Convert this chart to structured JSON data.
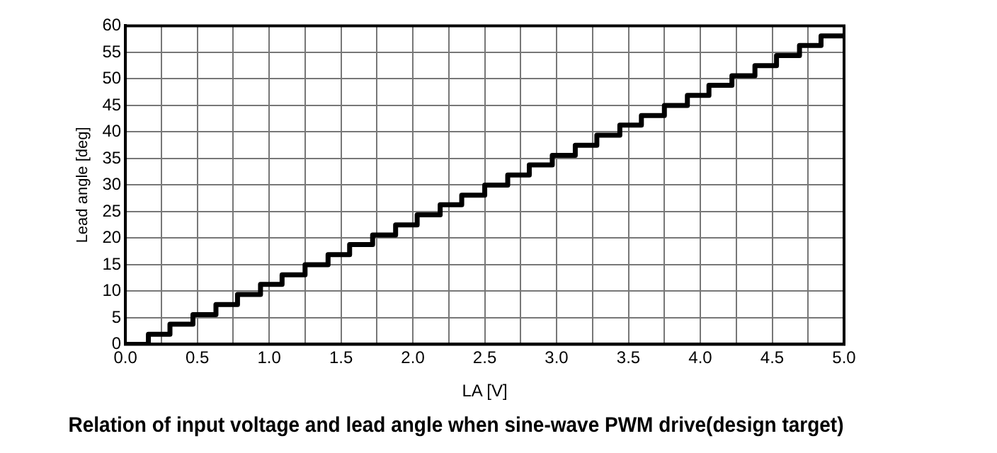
{
  "chart_data": {
    "type": "step",
    "title": "Relation of input voltage and lead angle when sine-wave PWM drive(design target)",
    "xlabel": "LA [V]",
    "ylabel": "Lead angle [deg]",
    "x": [
      0,
      0.16,
      0.31,
      0.47,
      0.63,
      0.78,
      0.94,
      1.09,
      1.25,
      1.41,
      1.56,
      1.72,
      1.88,
      2.03,
      2.19,
      2.34,
      2.5,
      2.66,
      2.81,
      2.97,
      3.13,
      3.28,
      3.44,
      3.59,
      3.75,
      3.91,
      4.06,
      4.22,
      4.38,
      4.53,
      4.69,
      4.84,
      5.0
    ],
    "values": [
      0,
      1.9,
      3.8,
      5.6,
      7.5,
      9.4,
      11.3,
      13.1,
      15,
      16.9,
      18.8,
      20.6,
      22.5,
      24.4,
      26.3,
      28.1,
      30,
      31.9,
      33.8,
      35.6,
      37.5,
      39.4,
      41.3,
      43.1,
      45,
      46.9,
      48.8,
      50.6,
      52.5,
      54.4,
      56.3,
      58.1,
      58.1
    ],
    "color": "#000000",
    "xlim": [
      0,
      5
    ],
    "ylim": [
      0,
      60
    ],
    "xticks": [
      {
        "value": 0,
        "label": "0.0"
      },
      {
        "value": 0.25,
        "label": null
      },
      0.5,
      {
        "value": 0.75,
        "label": null
      },
      {
        "value": 1,
        "label": "1.0"
      },
      {
        "value": 1.25,
        "label": null
      },
      1.5,
      {
        "value": 1.75,
        "label": null
      },
      {
        "value": 2,
        "label": "2.0"
      },
      {
        "value": 2.25,
        "label": null
      },
      2.5,
      {
        "value": 2.75,
        "label": null
      },
      {
        "value": 3,
        "label": "3.0"
      },
      {
        "value": 3.25,
        "label": null
      },
      3.5,
      {
        "value": 3.75,
        "label": null
      },
      {
        "value": 4,
        "label": "4.0"
      },
      {
        "value": 4.25,
        "label": null
      },
      4.5,
      {
        "value": 4.75,
        "label": null
      },
      {
        "value": 5,
        "label": "5.0"
      }
    ],
    "yticks": [
      0,
      5,
      10,
      15,
      20,
      25,
      30,
      35,
      40,
      45,
      50,
      55,
      60
    ],
    "grid": true
  }
}
